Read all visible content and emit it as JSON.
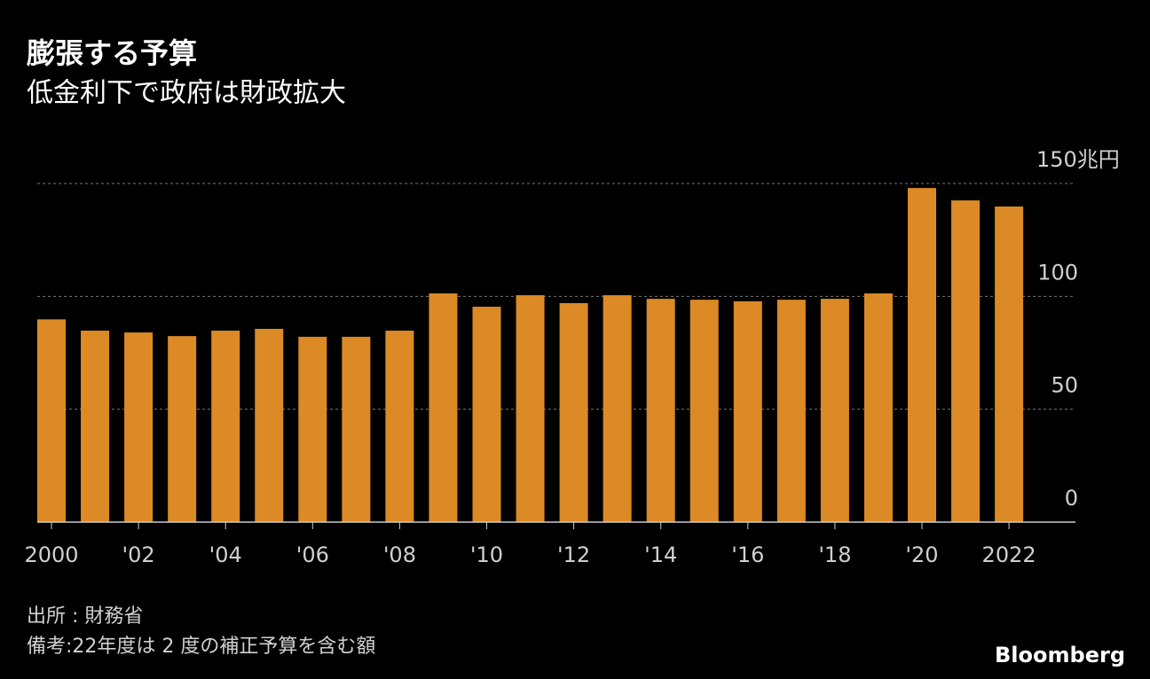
{
  "chart_data": {
    "type": "bar",
    "title": "膨張する予算",
    "subtitle": "低金利下で政府は財政拡大",
    "categories": [
      "2000",
      null,
      "'02",
      null,
      "'04",
      null,
      "'06",
      null,
      "'08",
      null,
      "'10",
      null,
      "'12",
      null,
      "'14",
      null,
      "'16",
      null,
      "'18",
      null,
      "'20",
      null,
      "2022"
    ],
    "values": [
      89.8,
      84.8,
      84.0,
      82.4,
      84.8,
      85.6,
      82.1,
      82.1,
      84.8,
      101.3,
      95.4,
      100.5,
      97.0,
      100.5,
      98.9,
      98.5,
      97.8,
      98.5,
      98.9,
      101.3,
      148.0,
      142.5,
      139.8
    ],
    "color": "#dc8a26",
    "ylim": [
      0,
      150
    ],
    "yticks": [
      0,
      50,
      100,
      {
        "value": 150,
        "label": "150兆円"
      }
    ],
    "grid": true,
    "source": "出所 : 財務省",
    "note": "備考:22年度は 2 度の補正予算を含む額",
    "logo": "Bloomberg"
  }
}
